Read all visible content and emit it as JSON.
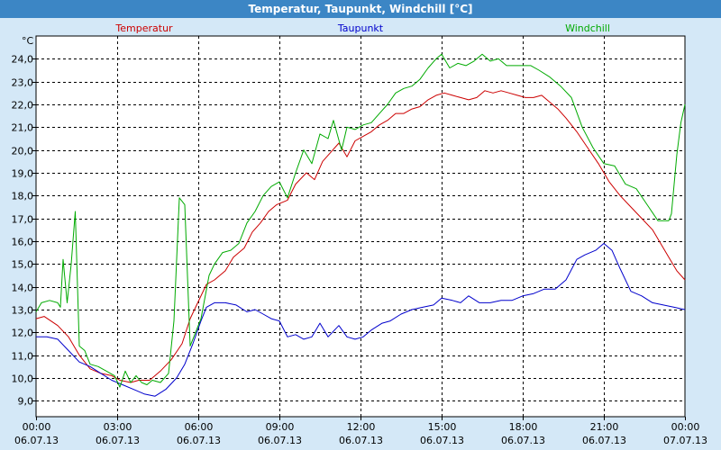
{
  "window": {
    "title": "Temperatur, Taupunkt, Windchill [°C]"
  },
  "chart_data": {
    "type": "line",
    "ylabel": "°C",
    "ylim": [
      8.3,
      25.0
    ],
    "yticks": [
      "24,0",
      "23,0",
      "22,0",
      "21,0",
      "20,0",
      "19,0",
      "18,0",
      "17,0",
      "16,0",
      "15,0",
      "14,0",
      "13,0",
      "12,0",
      "11,0",
      "10,0",
      "9,0"
    ],
    "ytick_values": [
      24,
      23,
      22,
      21,
      20,
      19,
      18,
      17,
      16,
      15,
      14,
      13,
      12,
      11,
      10,
      9
    ],
    "xlim": [
      0,
      24
    ],
    "xticks": [
      {
        "time": "00:00",
        "date": "06.07.13",
        "hour": 0
      },
      {
        "time": "03:00",
        "date": "06.07.13",
        "hour": 3
      },
      {
        "time": "06:00",
        "date": "06.07.13",
        "hour": 6
      },
      {
        "time": "09:00",
        "date": "06.07.13",
        "hour": 9
      },
      {
        "time": "12:00",
        "date": "06.07.13",
        "hour": 12
      },
      {
        "time": "15:00",
        "date": "06.07.13",
        "hour": 15
      },
      {
        "time": "18:00",
        "date": "06.07.13",
        "hour": 18
      },
      {
        "time": "21:00",
        "date": "06.07.13",
        "hour": 21
      },
      {
        "time": "00:00",
        "date": "07.07.13",
        "hour": 24
      }
    ],
    "grid": true,
    "legend": "top",
    "series": [
      {
        "name": "Temperatur",
        "color": "#cc0000",
        "points": [
          [
            0,
            12.6
          ],
          [
            0.3,
            12.7
          ],
          [
            0.8,
            12.3
          ],
          [
            1.2,
            11.8
          ],
          [
            1.6,
            11.0
          ],
          [
            2.0,
            10.4
          ],
          [
            2.4,
            10.2
          ],
          [
            2.8,
            10.1
          ],
          [
            3.1,
            9.9
          ],
          [
            3.5,
            9.8
          ],
          [
            3.8,
            9.9
          ],
          [
            4.2,
            9.9
          ],
          [
            4.6,
            10.3
          ],
          [
            5.0,
            10.8
          ],
          [
            5.4,
            11.5
          ],
          [
            5.7,
            12.6
          ],
          [
            5.9,
            13.1
          ],
          [
            6.3,
            14.1
          ],
          [
            6.6,
            14.3
          ],
          [
            7.0,
            14.7
          ],
          [
            7.3,
            15.3
          ],
          [
            7.7,
            15.7
          ],
          [
            8.0,
            16.4
          ],
          [
            8.3,
            16.8
          ],
          [
            8.6,
            17.3
          ],
          [
            8.9,
            17.6
          ],
          [
            9.3,
            17.8
          ],
          [
            9.6,
            18.5
          ],
          [
            10.0,
            19.0
          ],
          [
            10.3,
            18.7
          ],
          [
            10.6,
            19.5
          ],
          [
            10.9,
            19.9
          ],
          [
            11.2,
            20.3
          ],
          [
            11.5,
            19.7
          ],
          [
            11.8,
            20.4
          ],
          [
            12.1,
            20.6
          ],
          [
            12.4,
            20.8
          ],
          [
            12.7,
            21.1
          ],
          [
            13.0,
            21.3
          ],
          [
            13.3,
            21.6
          ],
          [
            13.6,
            21.6
          ],
          [
            13.9,
            21.8
          ],
          [
            14.2,
            21.9
          ],
          [
            14.5,
            22.2
          ],
          [
            14.8,
            22.4
          ],
          [
            15.1,
            22.5
          ],
          [
            15.4,
            22.4
          ],
          [
            15.7,
            22.3
          ],
          [
            16.0,
            22.2
          ],
          [
            16.3,
            22.3
          ],
          [
            16.6,
            22.6
          ],
          [
            16.9,
            22.5
          ],
          [
            17.2,
            22.6
          ],
          [
            17.5,
            22.5
          ],
          [
            17.8,
            22.4
          ],
          [
            18.1,
            22.3
          ],
          [
            18.4,
            22.3
          ],
          [
            18.7,
            22.4
          ],
          [
            19.0,
            22.1
          ],
          [
            19.3,
            21.8
          ],
          [
            19.6,
            21.4
          ],
          [
            20.0,
            20.8
          ],
          [
            20.4,
            20.1
          ],
          [
            20.8,
            19.4
          ],
          [
            21.2,
            18.6
          ],
          [
            21.6,
            18.0
          ],
          [
            22.0,
            17.5
          ],
          [
            22.4,
            17.0
          ],
          [
            22.8,
            16.5
          ],
          [
            23.1,
            15.9
          ],
          [
            23.4,
            15.3
          ],
          [
            23.7,
            14.7
          ],
          [
            24.0,
            14.3
          ]
        ]
      },
      {
        "name": "Taupunkt",
        "color": "#0000cc",
        "points": [
          [
            0,
            11.8
          ],
          [
            0.4,
            11.8
          ],
          [
            0.8,
            11.7
          ],
          [
            1.2,
            11.2
          ],
          [
            1.6,
            10.7
          ],
          [
            2.0,
            10.5
          ],
          [
            2.4,
            10.2
          ],
          [
            2.8,
            9.9
          ],
          [
            3.2,
            9.7
          ],
          [
            3.6,
            9.5
          ],
          [
            4.0,
            9.3
          ],
          [
            4.4,
            9.2
          ],
          [
            4.8,
            9.5
          ],
          [
            5.2,
            10.0
          ],
          [
            5.5,
            10.6
          ],
          [
            5.8,
            11.5
          ],
          [
            6.1,
            12.5
          ],
          [
            6.3,
            13.1
          ],
          [
            6.6,
            13.3
          ],
          [
            7.0,
            13.3
          ],
          [
            7.4,
            13.2
          ],
          [
            7.8,
            12.9
          ],
          [
            8.1,
            13.0
          ],
          [
            8.4,
            12.8
          ],
          [
            8.7,
            12.6
          ],
          [
            9.0,
            12.5
          ],
          [
            9.3,
            11.8
          ],
          [
            9.6,
            11.9
          ],
          [
            9.9,
            11.7
          ],
          [
            10.2,
            11.8
          ],
          [
            10.5,
            12.4
          ],
          [
            10.8,
            11.8
          ],
          [
            11.2,
            12.3
          ],
          [
            11.5,
            11.8
          ],
          [
            11.8,
            11.7
          ],
          [
            12.1,
            11.8
          ],
          [
            12.4,
            12.1
          ],
          [
            12.8,
            12.4
          ],
          [
            13.1,
            12.5
          ],
          [
            13.5,
            12.8
          ],
          [
            13.9,
            13.0
          ],
          [
            14.3,
            13.1
          ],
          [
            14.7,
            13.2
          ],
          [
            15.0,
            13.5
          ],
          [
            15.4,
            13.4
          ],
          [
            15.7,
            13.3
          ],
          [
            16.0,
            13.6
          ],
          [
            16.4,
            13.3
          ],
          [
            16.8,
            13.3
          ],
          [
            17.2,
            13.4
          ],
          [
            17.6,
            13.4
          ],
          [
            18.0,
            13.6
          ],
          [
            18.4,
            13.7
          ],
          [
            18.8,
            13.9
          ],
          [
            19.2,
            13.9
          ],
          [
            19.6,
            14.3
          ],
          [
            20.0,
            15.2
          ],
          [
            20.3,
            15.4
          ],
          [
            20.7,
            15.6
          ],
          [
            21.0,
            15.9
          ],
          [
            21.3,
            15.6
          ],
          [
            21.6,
            14.8
          ],
          [
            22.0,
            13.8
          ],
          [
            22.4,
            13.6
          ],
          [
            22.8,
            13.3
          ],
          [
            23.2,
            13.2
          ],
          [
            23.6,
            13.1
          ],
          [
            24.0,
            13.0
          ]
        ]
      },
      {
        "name": "Windchill",
        "color": "#00aa00",
        "points": [
          [
            0,
            12.9
          ],
          [
            0.2,
            13.3
          ],
          [
            0.5,
            13.4
          ],
          [
            0.8,
            13.3
          ],
          [
            0.9,
            13.1
          ],
          [
            1.0,
            15.2
          ],
          [
            1.15,
            13.3
          ],
          [
            1.3,
            15.0
          ],
          [
            1.45,
            17.3
          ],
          [
            1.6,
            11.4
          ],
          [
            1.8,
            11.2
          ],
          [
            2.0,
            10.6
          ],
          [
            2.3,
            10.5
          ],
          [
            2.6,
            10.3
          ],
          [
            2.9,
            10.1
          ],
          [
            3.1,
            9.6
          ],
          [
            3.3,
            10.3
          ],
          [
            3.5,
            9.8
          ],
          [
            3.7,
            10.1
          ],
          [
            3.9,
            9.8
          ],
          [
            4.1,
            9.7
          ],
          [
            4.3,
            9.9
          ],
          [
            4.6,
            9.8
          ],
          [
            4.9,
            10.2
          ],
          [
            5.1,
            12.5
          ],
          [
            5.3,
            17.9
          ],
          [
            5.5,
            17.6
          ],
          [
            5.7,
            11.4
          ],
          [
            5.9,
            12.0
          ],
          [
            6.1,
            12.6
          ],
          [
            6.4,
            14.5
          ],
          [
            6.6,
            15.0
          ],
          [
            6.9,
            15.5
          ],
          [
            7.2,
            15.6
          ],
          [
            7.5,
            15.9
          ],
          [
            7.8,
            16.8
          ],
          [
            8.1,
            17.3
          ],
          [
            8.4,
            18.0
          ],
          [
            8.7,
            18.4
          ],
          [
            9.0,
            18.6
          ],
          [
            9.3,
            17.9
          ],
          [
            9.6,
            19.0
          ],
          [
            9.9,
            20.0
          ],
          [
            10.2,
            19.4
          ],
          [
            10.5,
            20.7
          ],
          [
            10.8,
            20.5
          ],
          [
            11.0,
            21.3
          ],
          [
            11.3,
            20.0
          ],
          [
            11.5,
            21.0
          ],
          [
            11.8,
            20.9
          ],
          [
            12.1,
            21.1
          ],
          [
            12.4,
            21.2
          ],
          [
            12.7,
            21.6
          ],
          [
            13.0,
            22.0
          ],
          [
            13.3,
            22.5
          ],
          [
            13.6,
            22.7
          ],
          [
            13.9,
            22.8
          ],
          [
            14.2,
            23.1
          ],
          [
            14.5,
            23.6
          ],
          [
            14.8,
            24.0
          ],
          [
            15.0,
            24.2
          ],
          [
            15.3,
            23.6
          ],
          [
            15.6,
            23.8
          ],
          [
            15.9,
            23.7
          ],
          [
            16.2,
            23.9
          ],
          [
            16.5,
            24.2
          ],
          [
            16.8,
            23.9
          ],
          [
            17.1,
            24.0
          ],
          [
            17.4,
            23.7
          ],
          [
            17.7,
            23.7
          ],
          [
            18.0,
            23.7
          ],
          [
            18.3,
            23.7
          ],
          [
            18.6,
            23.5
          ],
          [
            19.0,
            23.2
          ],
          [
            19.4,
            22.8
          ],
          [
            19.8,
            22.3
          ],
          [
            20.2,
            21.0
          ],
          [
            20.6,
            20.1
          ],
          [
            21.0,
            19.4
          ],
          [
            21.4,
            19.3
          ],
          [
            21.8,
            18.5
          ],
          [
            22.2,
            18.3
          ],
          [
            22.6,
            17.6
          ],
          [
            23.0,
            16.9
          ],
          [
            23.4,
            16.9
          ],
          [
            23.5,
            17.2
          ],
          [
            23.7,
            19.8
          ],
          [
            23.85,
            21.2
          ],
          [
            24.0,
            22.0
          ]
        ]
      }
    ]
  }
}
